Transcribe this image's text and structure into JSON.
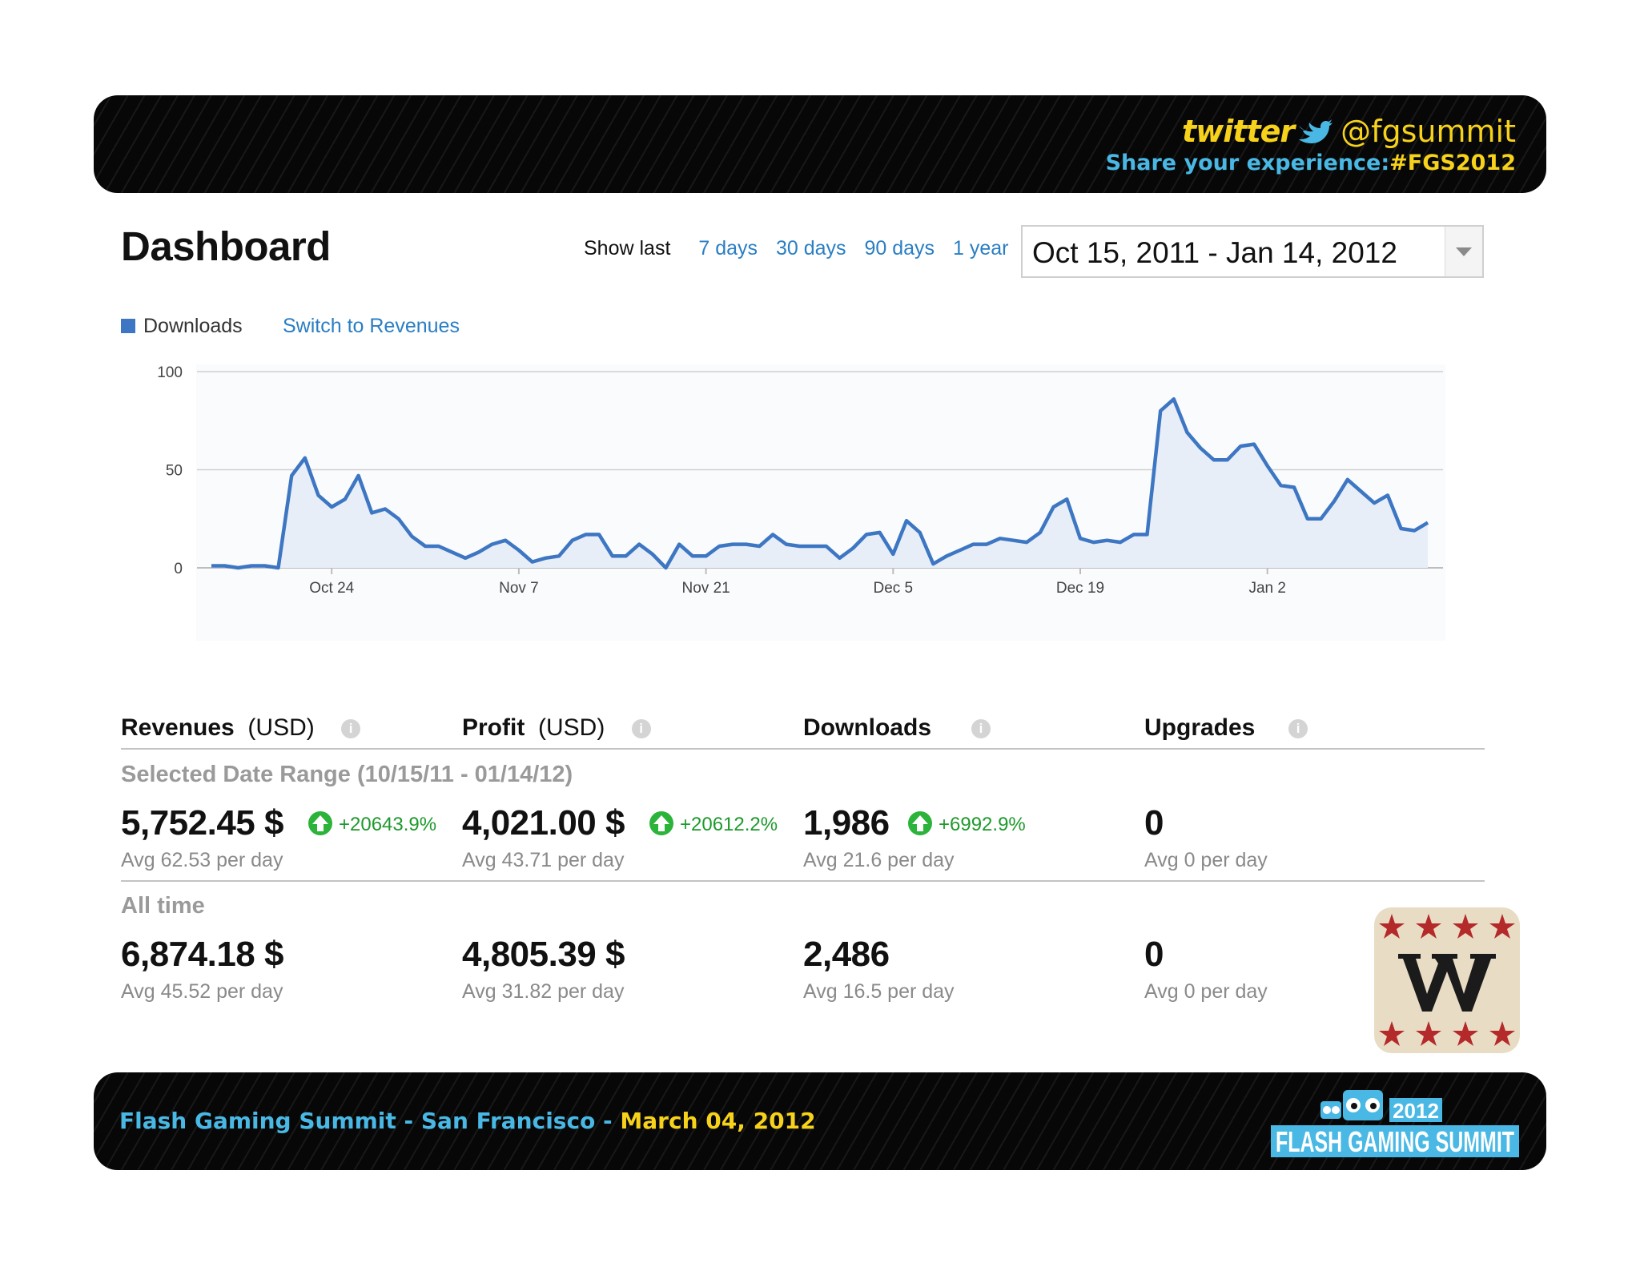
{
  "header": {
    "twitter_word": "twitter",
    "handle": "@fgsummit",
    "share_text": "Share your experience:",
    "hashtag": "#FGS2012"
  },
  "dashboard": {
    "title": "Dashboard",
    "show_last_label": "Show last",
    "ranges": [
      "7 days",
      "30 days",
      "90 days",
      "1 year"
    ],
    "date_range": "Oct 15, 2011 - Jan 14, 2012"
  },
  "legend": {
    "series_label": "Downloads",
    "switch_link": "Switch to Revenues"
  },
  "colors": {
    "series": "#3d76c2",
    "fill": "#e8eef8",
    "link": "#2a7ec4",
    "positive": "#1e9a2c",
    "brand_blue": "#49b8e4",
    "brand_yellow": "#f7d21b"
  },
  "chart_data": {
    "type": "area",
    "series": [
      {
        "name": "Downloads",
        "values": [
          1,
          1,
          0,
          1,
          1,
          0,
          47,
          56,
          37,
          31,
          35,
          47,
          28,
          30,
          25,
          16,
          11,
          11,
          8,
          5,
          8,
          12,
          14,
          9,
          3,
          5,
          6,
          14,
          17,
          17,
          6,
          6,
          12,
          7,
          0,
          12,
          6,
          6,
          11,
          12,
          12,
          11,
          17,
          12,
          11,
          11,
          11,
          5,
          10,
          17,
          18,
          7,
          24,
          18,
          2,
          6,
          9,
          12,
          12,
          15,
          14,
          13,
          18,
          31,
          35,
          15,
          13,
          14,
          13,
          17,
          17,
          80,
          86,
          69,
          61,
          55,
          55,
          62,
          63,
          52,
          42,
          41,
          25,
          25,
          34,
          45,
          39,
          33,
          37,
          20,
          19,
          23
        ]
      }
    ],
    "x_tick_labels": [
      "Oct 24",
      "Nov 7",
      "Nov 21",
      "Dec 5",
      "Dec 19",
      "Jan 2"
    ],
    "x_tick_index": [
      9,
      23,
      37,
      51,
      65,
      79
    ],
    "y_tick_labels": [
      "100",
      "50",
      "0"
    ],
    "ylim": [
      0,
      100
    ],
    "grid": true
  },
  "metrics": {
    "columns": [
      {
        "title": "Revenues",
        "unit": "(USD)",
        "selected_value": "5,752.45 $",
        "selected_delta": "+20643.9%",
        "selected_avg": "Avg 62.53 per day",
        "all_value": "6,874.18 $",
        "all_avg": "Avg 45.52 per day"
      },
      {
        "title": "Profit",
        "unit": "(USD)",
        "selected_value": "4,021.00 $",
        "selected_delta": "+20612.2%",
        "selected_avg": "Avg 43.71 per day",
        "all_value": "4,805.39 $",
        "all_avg": "Avg 31.82 per day"
      },
      {
        "title": "Downloads",
        "unit": "",
        "selected_value": "1,986",
        "selected_delta": "+6992.9%",
        "selected_avg": "Avg 21.6 per day",
        "all_value": "2,486",
        "all_avg": "Avg 16.5 per day"
      },
      {
        "title": "Upgrades",
        "unit": "",
        "selected_value": "0",
        "selected_delta": "",
        "selected_avg": "Avg 0 per day",
        "all_value": "0",
        "all_avg": "Avg 0 per day"
      }
    ],
    "selected_label": "Selected Date Range (10/15/11 - 01/14/12)",
    "alltime_label": "All time"
  },
  "footer": {
    "event": "Flash Gaming Summit - San Francisco - ",
    "date": "March 04, 2012",
    "logo_year": "2012",
    "logo_text": "FLASH GAMING SUMMIT"
  }
}
